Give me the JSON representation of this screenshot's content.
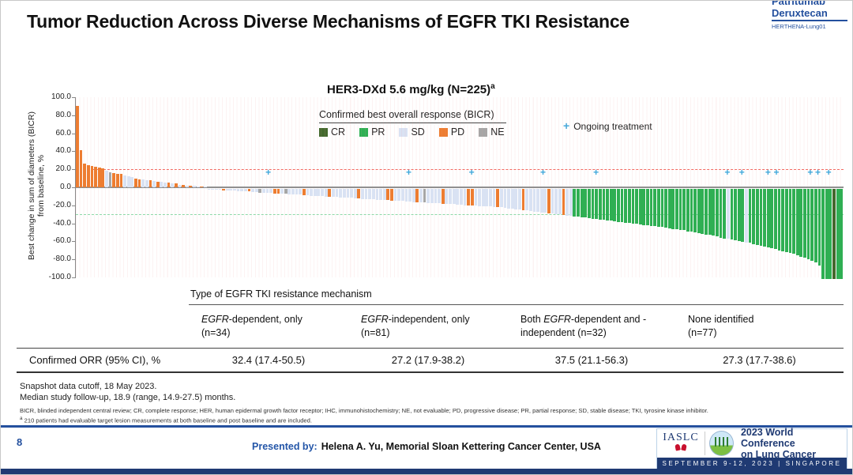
{
  "header": {
    "title": "Tumor Reduction Across Diverse Mechanisms of EGFR TKI Resistance"
  },
  "brand": {
    "line1": "Patritumab",
    "line2": "Deruxtecan",
    "line3": "HERTHENA-Lung01"
  },
  "chart_data": {
    "type": "bar",
    "subtype": "waterfall",
    "title": "HER3-DXd 5.6 mg/kg (N=225)",
    "title_sup": "a",
    "ylabel_line1": "Best change in sum of diameters (BICR)",
    "ylabel_line2": "from baseline, %",
    "ylim": [
      -100,
      100
    ],
    "ytick_labels": [
      "100.0",
      "80.0",
      "60.0",
      "40.0",
      "20.0",
      "0.0",
      "-20.0",
      "-40.0",
      "-60.0",
      "-80.0",
      "-100.0"
    ],
    "grid": "faint-vertical",
    "reference_lines": [
      {
        "y": 20,
        "color": "#F26A62",
        "style": "dashed"
      },
      {
        "y": -30,
        "color": "#8ED9A8",
        "style": "dashed"
      }
    ],
    "legend": {
      "title": "Confirmed best overall response (BICR)",
      "position": "top",
      "items": [
        {
          "label": "CR",
          "color": "#44682D"
        },
        {
          "label": "PR",
          "color": "#2FAF53"
        },
        {
          "label": "SD",
          "color": "#D9E2F3"
        },
        {
          "label": "PD",
          "color": "#ED7D31"
        },
        {
          "label": "NE",
          "color": "#A6A6A6"
        }
      ]
    },
    "colors": {
      "CR": "#44682D",
      "PR": "#2FAF53",
      "SD": "#D9E2F3",
      "PD": "#ED7D31",
      "NE": "#A6A6A6"
    },
    "ongoing_marker": "+",
    "ongoing_label": "Ongoing treatment",
    "ongoing_marker_color": "#3FA8DB",
    "ongoing_positions_pct": [
      24.7,
      43.0,
      51.2,
      60.5,
      67.4,
      84.5,
      86.4,
      89.8,
      90.9,
      95.3,
      96.3,
      97.7
    ],
    "bars": [
      [
        90,
        "PD"
      ],
      [
        41,
        "PD"
      ],
      [
        26,
        "PD"
      ],
      [
        25,
        "PD"
      ],
      [
        24,
        "PD"
      ],
      [
        23,
        "PD"
      ],
      [
        22,
        "PD"
      ],
      [
        21,
        "PD"
      ],
      [
        18,
        "SD"
      ],
      [
        17,
        "NE"
      ],
      [
        16,
        "PD"
      ],
      [
        15,
        "PD"
      ],
      [
        15,
        "PD"
      ],
      [
        13,
        "SD"
      ],
      [
        12,
        "SD"
      ],
      [
        11,
        "SD"
      ],
      [
        10,
        "PD"
      ],
      [
        9,
        "PD"
      ],
      [
        9,
        "SD"
      ],
      [
        8,
        "SD"
      ],
      [
        8,
        "PD"
      ],
      [
        7,
        "SD"
      ],
      [
        6,
        "PD"
      ],
      [
        6,
        "SD"
      ],
      [
        5,
        "SD"
      ],
      [
        5,
        "PD"
      ],
      [
        4,
        "SD"
      ],
      [
        4,
        "PD"
      ],
      [
        3,
        "SD"
      ],
      [
        3,
        "PD"
      ],
      [
        2,
        "SD"
      ],
      [
        2,
        "PD"
      ],
      [
        2,
        "SD"
      ],
      [
        1,
        "SD"
      ],
      [
        1,
        "PD"
      ],
      [
        1,
        "SD"
      ],
      [
        -0.5,
        "SD"
      ],
      [
        -0.5,
        "SD"
      ],
      [
        -1,
        "SD"
      ],
      [
        -1,
        "SD"
      ],
      [
        -1.5,
        "PD"
      ],
      [
        -1.5,
        "SD"
      ],
      [
        -2,
        "SD"
      ],
      [
        -2,
        "SD"
      ],
      [
        -2.5,
        "SD"
      ],
      [
        -2.5,
        "SD"
      ],
      [
        -3,
        "SD"
      ],
      [
        -3,
        "PD"
      ],
      [
        -3.5,
        "SD"
      ],
      [
        -3.5,
        "SD"
      ],
      [
        -4,
        "NE"
      ],
      [
        -4,
        "SD"
      ],
      [
        -4.5,
        "SD"
      ],
      [
        -4.5,
        "SD"
      ],
      [
        -5,
        "PD"
      ],
      [
        -5,
        "PD"
      ],
      [
        -5.5,
        "SD"
      ],
      [
        -5.5,
        "NE"
      ],
      [
        -6,
        "SD"
      ],
      [
        -6,
        "SD"
      ],
      [
        -6.5,
        "SD"
      ],
      [
        -6.5,
        "SD"
      ],
      [
        -7,
        "PD"
      ],
      [
        -7,
        "SD"
      ],
      [
        -7.5,
        "SD"
      ],
      [
        -7.5,
        "SD"
      ],
      [
        -8,
        "SD"
      ],
      [
        -8,
        "SD"
      ],
      [
        -8.5,
        "SD"
      ],
      [
        -8.5,
        "PD"
      ],
      [
        -9,
        "SD"
      ],
      [
        -9,
        "SD"
      ],
      [
        -9.5,
        "SD"
      ],
      [
        -9.5,
        "SD"
      ],
      [
        -10,
        "SD"
      ],
      [
        -10,
        "SD"
      ],
      [
        -10.5,
        "SD"
      ],
      [
        -10.5,
        "PD"
      ],
      [
        -11,
        "SD"
      ],
      [
        -11,
        "SD"
      ],
      [
        -11.5,
        "SD"
      ],
      [
        -11.5,
        "SD"
      ],
      [
        -12,
        "SD"
      ],
      [
        -12,
        "SD"
      ],
      [
        -12.5,
        "SD"
      ],
      [
        -12.5,
        "PD"
      ],
      [
        -13,
        "PD"
      ],
      [
        -13,
        "SD"
      ],
      [
        -13.5,
        "SD"
      ],
      [
        -13.5,
        "SD"
      ],
      [
        -14,
        "SD"
      ],
      [
        -14,
        "SD"
      ],
      [
        -14.5,
        "SD"
      ],
      [
        -14.5,
        "PD"
      ],
      [
        -15,
        "SD"
      ],
      [
        -15,
        "NE"
      ],
      [
        -15.5,
        "SD"
      ],
      [
        -15.5,
        "SD"
      ],
      [
        -16,
        "SD"
      ],
      [
        -16,
        "SD"
      ],
      [
        -16.5,
        "PD"
      ],
      [
        -16.5,
        "SD"
      ],
      [
        -17,
        "SD"
      ],
      [
        -17,
        "SD"
      ],
      [
        -17.5,
        "SD"
      ],
      [
        -17.5,
        "SD"
      ],
      [
        -18,
        "SD"
      ],
      [
        -18,
        "PD"
      ],
      [
        -18.5,
        "PD"
      ],
      [
        -18.5,
        "SD"
      ],
      [
        -19,
        "SD"
      ],
      [
        -19,
        "SD"
      ],
      [
        -19.5,
        "SD"
      ],
      [
        -19.5,
        "SD"
      ],
      [
        -20,
        "SD"
      ],
      [
        -20,
        "PD"
      ],
      [
        -20.5,
        "SD"
      ],
      [
        -21,
        "SD"
      ],
      [
        -21.5,
        "SD"
      ],
      [
        -22,
        "SD"
      ],
      [
        -22.5,
        "SD"
      ],
      [
        -23,
        "SD"
      ],
      [
        -23.5,
        "PD"
      ],
      [
        -24,
        "SD"
      ],
      [
        -24.5,
        "SD"
      ],
      [
        -25,
        "SD"
      ],
      [
        -25.5,
        "SD"
      ],
      [
        -26,
        "SD"
      ],
      [
        -26.5,
        "SD"
      ],
      [
        -27,
        "PD"
      ],
      [
        -27.5,
        "SD"
      ],
      [
        -28,
        "SD"
      ],
      [
        -28.5,
        "SD"
      ],
      [
        -29,
        "PD"
      ],
      [
        -29.5,
        "SD"
      ],
      [
        -30,
        "SD"
      ],
      [
        -30.5,
        "PR"
      ],
      [
        -31,
        "PR"
      ],
      [
        -31.5,
        "PR"
      ],
      [
        -32,
        "PR"
      ],
      [
        -32.5,
        "PR"
      ],
      [
        -33,
        "PR"
      ],
      [
        -33.5,
        "PR"
      ],
      [
        -34,
        "PR"
      ],
      [
        -34.5,
        "PR"
      ],
      [
        -35,
        "PR"
      ],
      [
        -35.5,
        "PR"
      ],
      [
        -36,
        "PR"
      ],
      [
        -36.5,
        "PR"
      ],
      [
        -37,
        "PR"
      ],
      [
        -37.5,
        "PR"
      ],
      [
        -38,
        "PR"
      ],
      [
        -38.5,
        "PR"
      ],
      [
        -39,
        "PR"
      ],
      [
        -39.5,
        "PR"
      ],
      [
        -40,
        "PR"
      ],
      [
        -40.5,
        "PR"
      ],
      [
        -41,
        "PR"
      ],
      [
        -41.5,
        "PR"
      ],
      [
        -42,
        "PR"
      ],
      [
        -42.5,
        "PR"
      ],
      [
        -43,
        "PR"
      ],
      [
        -44,
        "PR"
      ],
      [
        -44.5,
        "PR"
      ],
      [
        -45,
        "PR"
      ],
      [
        -45.5,
        "PR"
      ],
      [
        -46,
        "PR"
      ],
      [
        -47,
        "PR"
      ],
      [
        -47.5,
        "PR"
      ],
      [
        -48,
        "PR"
      ],
      [
        -49,
        "PR"
      ],
      [
        -50,
        "PR"
      ],
      [
        -50.5,
        "PR"
      ],
      [
        -51,
        "PR"
      ],
      [
        -52,
        "PR"
      ],
      [
        -53,
        "PR"
      ],
      [
        -54,
        "PR"
      ],
      [
        -55,
        "PR"
      ],
      [
        -55.5,
        "SD"
      ],
      [
        -56,
        "PR"
      ],
      [
        -57,
        "PR"
      ],
      [
        -58,
        "PR"
      ],
      [
        -59,
        "PR"
      ],
      [
        -59.5,
        "SD"
      ],
      [
        -60,
        "PR"
      ],
      [
        -61,
        "PR"
      ],
      [
        -62,
        "PR"
      ],
      [
        -63,
        "PR"
      ],
      [
        -64,
        "PR"
      ],
      [
        -65,
        "PR"
      ],
      [
        -66,
        "PR"
      ],
      [
        -67,
        "PR"
      ],
      [
        -68,
        "PR"
      ],
      [
        -69,
        "PR"
      ],
      [
        -70,
        "PR"
      ],
      [
        -71,
        "PR"
      ],
      [
        -72,
        "PR"
      ],
      [
        -74,
        "PR"
      ],
      [
        -75,
        "PR"
      ],
      [
        -76,
        "PR"
      ],
      [
        -78,
        "PR"
      ],
      [
        -80,
        "PR"
      ],
      [
        -82,
        "PR"
      ],
      [
        -85,
        "PR"
      ],
      [
        -100,
        "PR"
      ],
      [
        -100,
        "PR"
      ],
      [
        -100,
        "PR"
      ],
      [
        -100,
        "CR"
      ],
      [
        -100,
        "PR"
      ],
      [
        -100,
        "PR"
      ]
    ]
  },
  "table": {
    "group_header": "Type of EGFR TKI resistance mechanism",
    "columns": [
      {
        "segments": [
          [
            "EGFR",
            true
          ],
          [
            "-dependent, only",
            false
          ]
        ],
        "line2": "(n=34)"
      },
      {
        "segments": [
          [
            "EGFR",
            true
          ],
          [
            "-independent, only",
            false
          ]
        ],
        "line2": "(n=81)"
      },
      {
        "segments": [
          [
            "Both ",
            false
          ],
          [
            "EGFR",
            true
          ],
          [
            "-dependent and -",
            false
          ]
        ],
        "line2": "independent (n=32)"
      },
      {
        "segments": [
          [
            "None identified",
            false
          ]
        ],
        "line2": "(n=77)"
      }
    ],
    "row_label": "Confirmed ORR (95% CI), %",
    "row_values": [
      "32.4 (17.4-50.5)",
      "27.2 (17.9-38.2)",
      "37.5 (21.1-56.3)",
      "27.3 (17.7-38.6)"
    ]
  },
  "footnotes": {
    "line1": "Snapshot data cutoff, 18 May 2023.",
    "line2": "Median study follow-up, 18.9 (range, 14.9-27.5) months.",
    "abbrev": "BICR, blinded independent central review; CR, complete response; HER, human epidermal growth factor receptor; IHC, immunohistochemistry; NE, not evaluable; PD, progressive disease; PR, partial response; SD, stable disease; TKI, tyrosine kinase inhibitor.",
    "note_sup": "a",
    "note": "210 patients had evaluable target lesion measurements at both baseline and post baseline and are included."
  },
  "footer": {
    "presented_prefix": "Presented by:",
    "presenter": "Helena A. Yu, Memorial Sloan Kettering Cancer Center, USA",
    "slide_number": "8",
    "conference": {
      "org": "IASLC",
      "title_line1": "2023 World Conference",
      "title_line2": "on Lung Cancer",
      "banner": "SEPTEMBER 9-12, 2023 | SINGAPORE"
    }
  }
}
